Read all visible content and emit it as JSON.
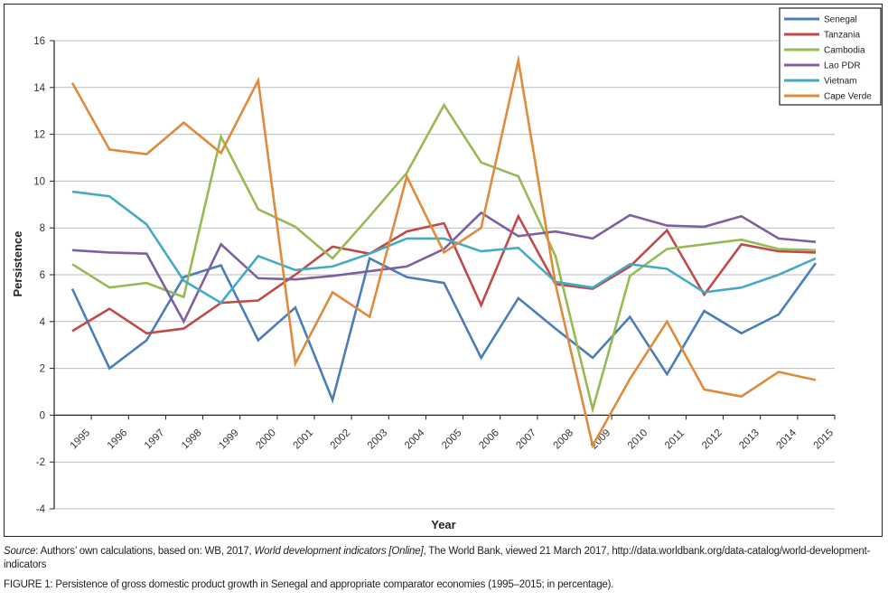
{
  "chart_data": {
    "type": "line",
    "title": "",
    "xlabel": "Year",
    "ylabel": "Persistence",
    "ylim": [
      -4,
      16
    ],
    "yticks": [
      -4,
      -2,
      0,
      2,
      4,
      6,
      8,
      10,
      12,
      14,
      16
    ],
    "grid": true,
    "legend_position": "top-right",
    "categories": [
      "1995",
      "1996",
      "1997",
      "1998",
      "1999",
      "2000",
      "2001",
      "2002",
      "2003",
      "2004",
      "2005",
      "2006",
      "2007",
      "2008",
      "2009",
      "2010",
      "2011",
      "2012",
      "2013",
      "2014",
      "2015"
    ],
    "series": [
      {
        "name": "Senegal",
        "color": "#4a7ebb",
        "values": [
          5.4,
          2.0,
          3.2,
          5.9,
          6.4,
          3.2,
          4.6,
          0.65,
          6.7,
          5.9,
          5.65,
          2.45,
          5.0,
          3.7,
          2.45,
          4.2,
          1.75,
          4.45,
          3.5,
          4.3,
          6.5
        ]
      },
      {
        "name": "Tanzania",
        "color": "#be4b48",
        "values": [
          3.6,
          4.55,
          3.5,
          3.7,
          4.8,
          4.9,
          6.0,
          7.2,
          6.9,
          7.85,
          8.2,
          4.7,
          8.5,
          5.6,
          5.4,
          6.35,
          7.9,
          5.15,
          7.3,
          7.0,
          6.95
        ]
      },
      {
        "name": "Cambodia",
        "color": "#98b954",
        "values": [
          6.45,
          5.45,
          5.65,
          5.05,
          11.9,
          8.8,
          8.05,
          6.7,
          8.5,
          10.35,
          13.25,
          10.8,
          10.2,
          6.8,
          0.25,
          5.95,
          7.1,
          7.3,
          7.5,
          7.1,
          7.05
        ]
      },
      {
        "name": "Lao PDR",
        "color": "#7d60a0",
        "values": [
          7.05,
          6.95,
          6.9,
          4.0,
          7.3,
          5.85,
          5.8,
          5.95,
          6.15,
          6.35,
          7.1,
          8.65,
          7.65,
          7.85,
          7.55,
          8.55,
          8.1,
          8.05,
          8.5,
          7.55,
          7.4
        ]
      },
      {
        "name": "Vietnam",
        "color": "#46aac5",
        "values": [
          9.55,
          9.35,
          8.15,
          5.75,
          4.8,
          6.8,
          6.2,
          6.35,
          6.9,
          7.55,
          7.55,
          7.0,
          7.15,
          5.7,
          5.45,
          6.45,
          6.25,
          5.25,
          5.45,
          6.0,
          6.7
        ]
      },
      {
        "name": "Cape Verde",
        "color": "#e08a3c",
        "values": [
          14.2,
          11.35,
          11.15,
          12.5,
          11.2,
          14.3,
          2.2,
          5.25,
          4.2,
          10.2,
          6.95,
          8.0,
          15.15,
          5.6,
          -1.3,
          1.55,
          4.0,
          1.1,
          0.8,
          1.85,
          1.5
        ]
      }
    ]
  },
  "caption": {
    "source_label": "Source",
    "source_text_1": ": Authors’ own calculations, based on: WB, 2017, ",
    "source_title": "World development indicators [Online]",
    "source_text_2": ", The World Bank, viewed 21 March 2017, http://data.worldbank.org/data-catalog/world-development-indicators",
    "figure_label": "FIGURE 1:",
    "figure_text": " Persistence of gross domestic product growth in Senegal and appropriate comparator economies (1995–2015; in percentage)."
  }
}
